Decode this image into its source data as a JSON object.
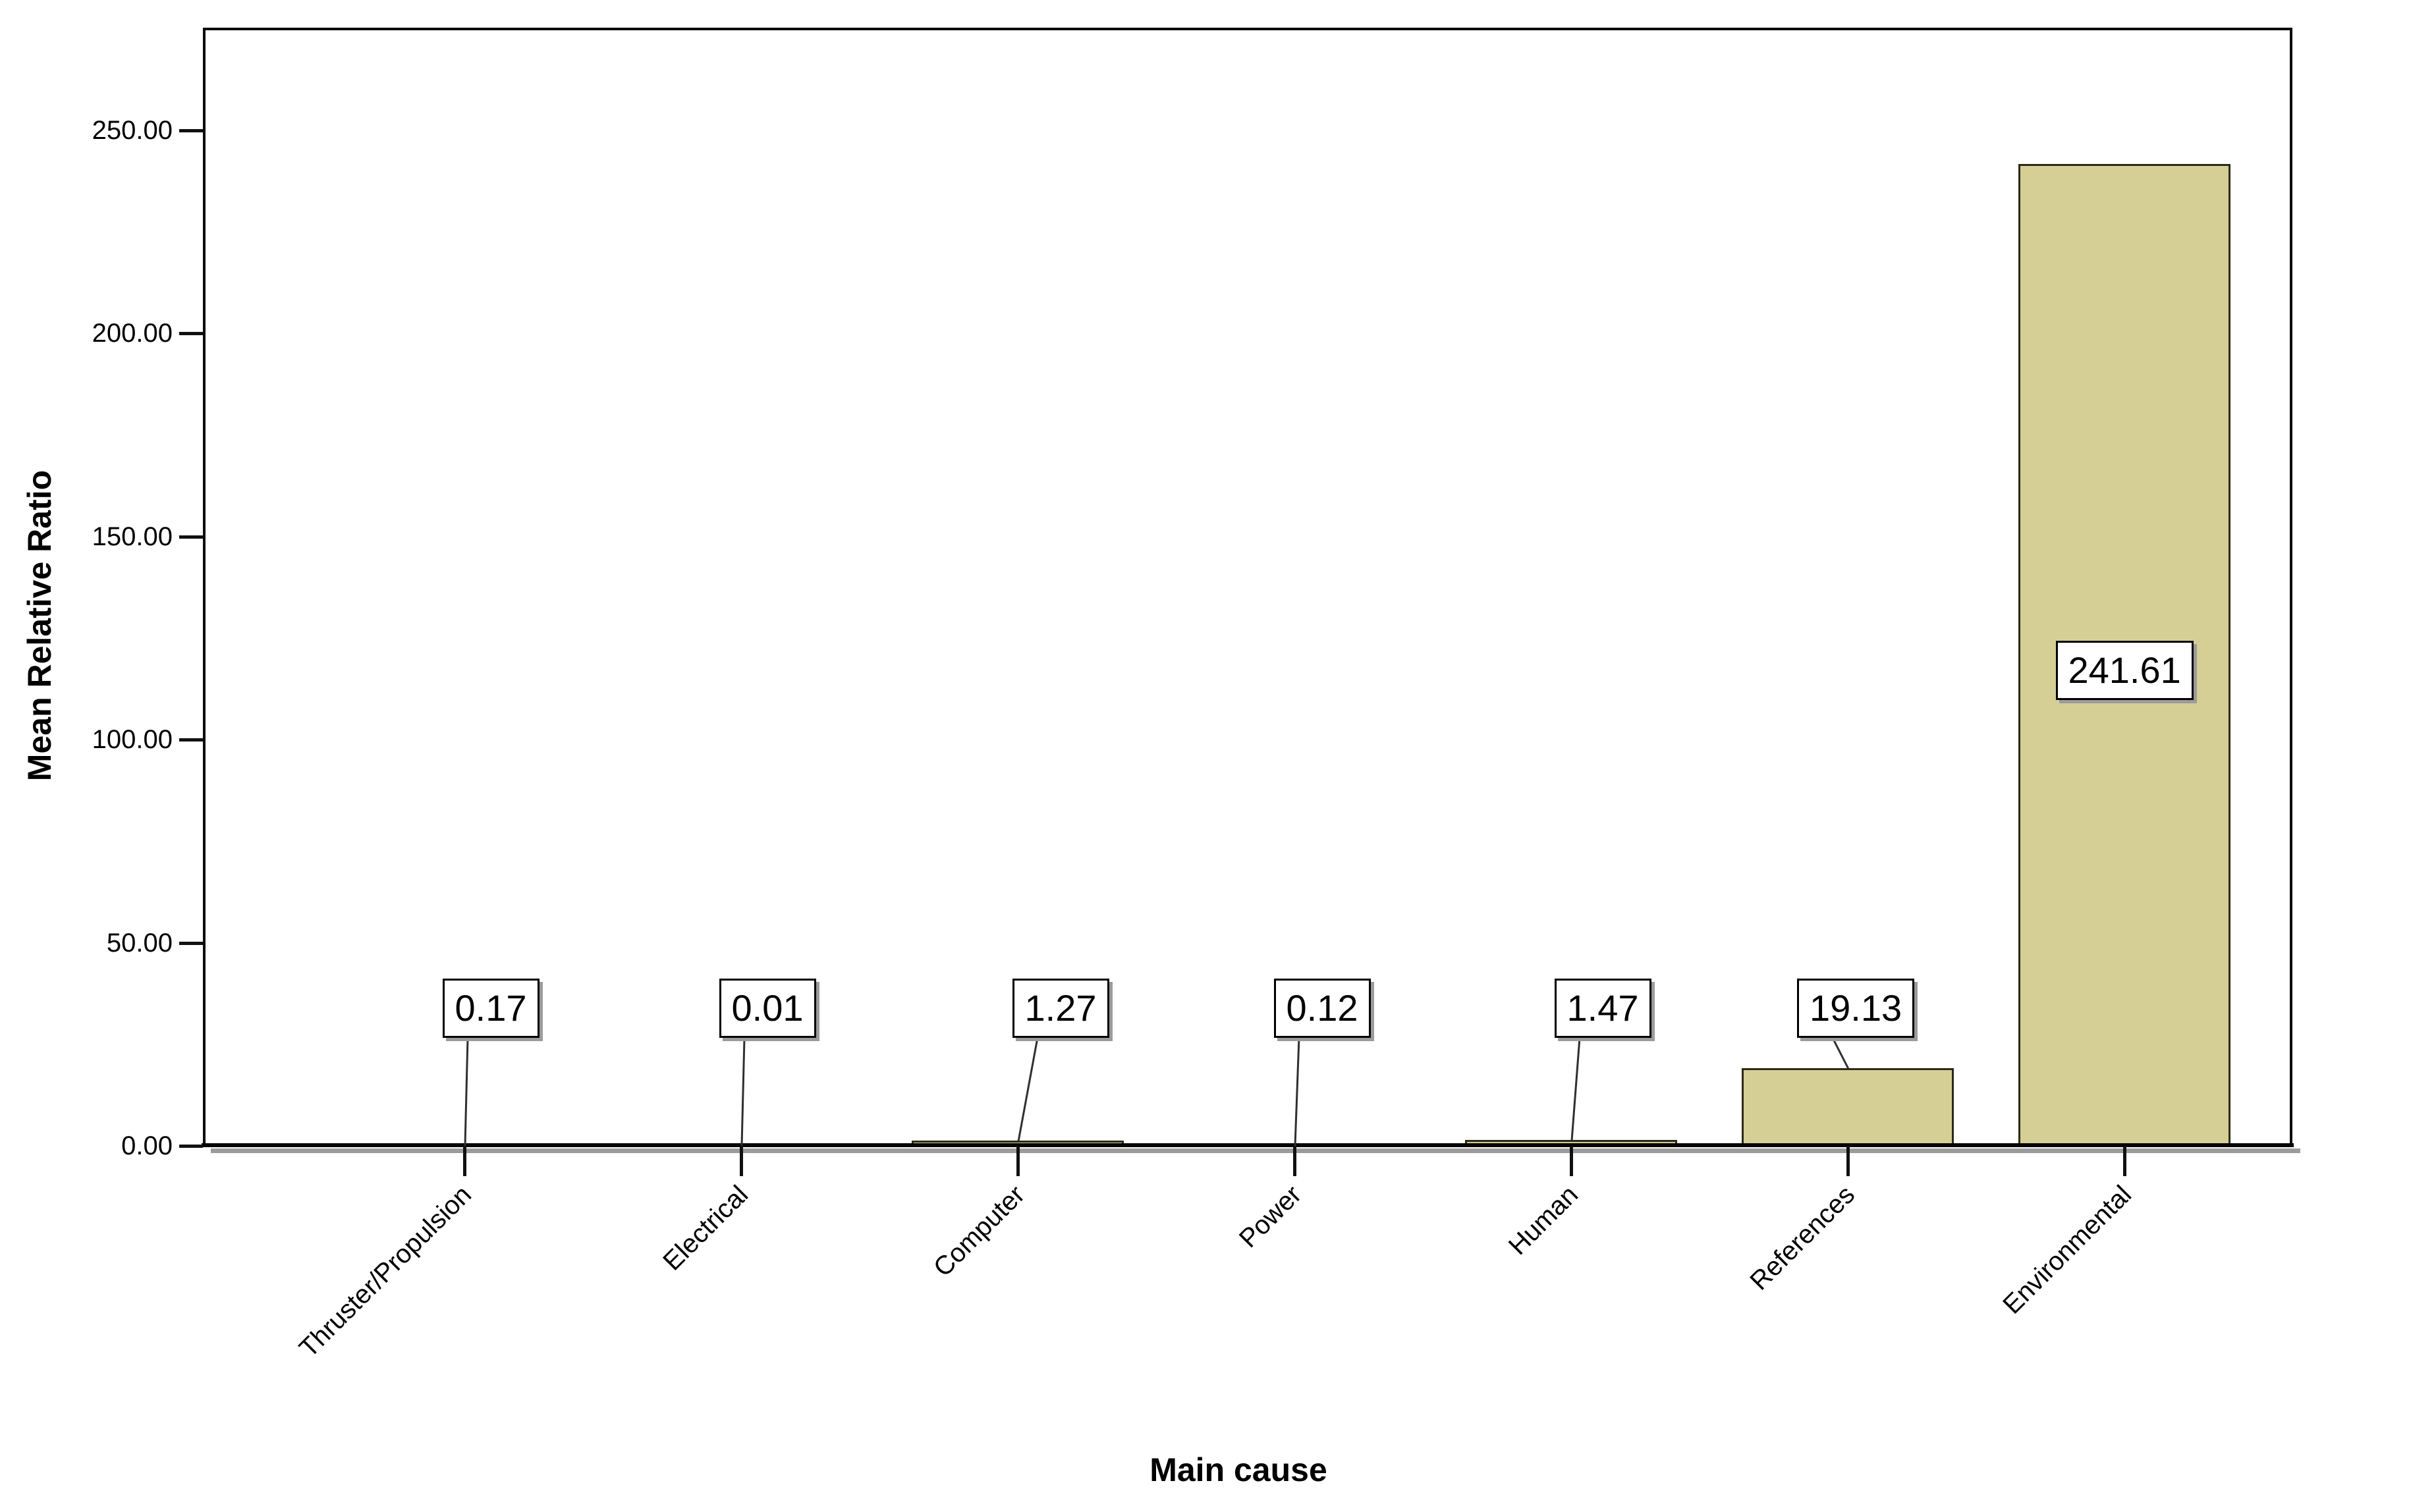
{
  "chart_data": {
    "type": "bar",
    "title": "",
    "xlabel": "Main cause",
    "ylabel": "Mean Relative Ratio",
    "categories": [
      "Thruster/Propulsion",
      "Electrical",
      "Computer",
      "Power",
      "Human",
      "References",
      "Environmental"
    ],
    "values": [
      0.17,
      0.01,
      1.27,
      0.12,
      1.47,
      19.13,
      241.61
    ],
    "data_labels": [
      "0.17",
      "0.01",
      "1.27",
      "0.12",
      "1.47",
      "19.13",
      "241.61"
    ],
    "y_ticks": {
      "values": [
        0,
        50,
        100,
        150,
        200,
        250
      ],
      "labels": [
        "0.00",
        "50.00",
        "100.00",
        "150.00",
        "200.00",
        "250.00"
      ]
    },
    "ylim": [
      0,
      275
    ],
    "grid": false,
    "legend": false,
    "colors": {
      "bar_fill": "#d5cf96",
      "bar_border": "#2b2a18",
      "axis": "#0d0d0d",
      "shadow": "#9b9b9b",
      "text": "#000000",
      "label_box_bg": "#ffffff",
      "label_box_border": "#000000"
    }
  }
}
